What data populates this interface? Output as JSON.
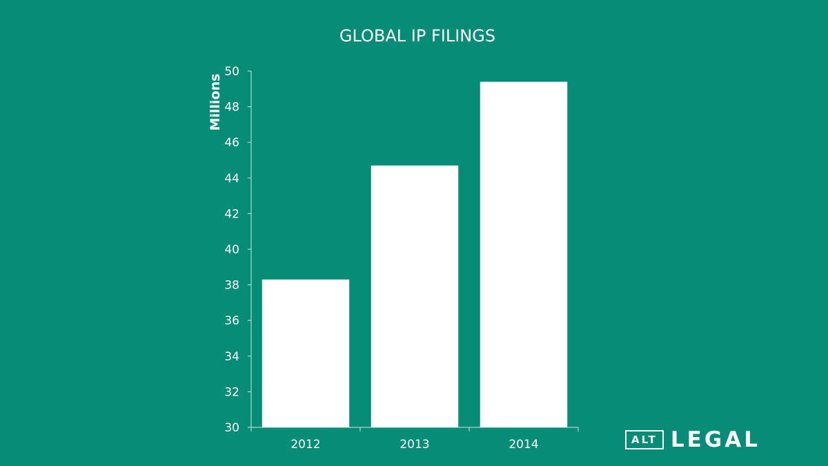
{
  "chart_data": {
    "type": "bar",
    "title": "GLOBAL IP FILINGS",
    "ylabel": "Millions",
    "xlabel": "",
    "categories": [
      "2012",
      "2013",
      "2014"
    ],
    "values": [
      38.3,
      44.7,
      49.4
    ],
    "ylim": [
      30,
      50
    ],
    "yticks": [
      30,
      32,
      34,
      36,
      38,
      40,
      42,
      44,
      46,
      48,
      50
    ],
    "grid": false,
    "legend": "none"
  },
  "logo": {
    "boxed_text": "ALT",
    "word": "LEGAL"
  },
  "colors": {
    "background": "#078c77",
    "bar": "#ffffff",
    "text": "#ffffff"
  }
}
